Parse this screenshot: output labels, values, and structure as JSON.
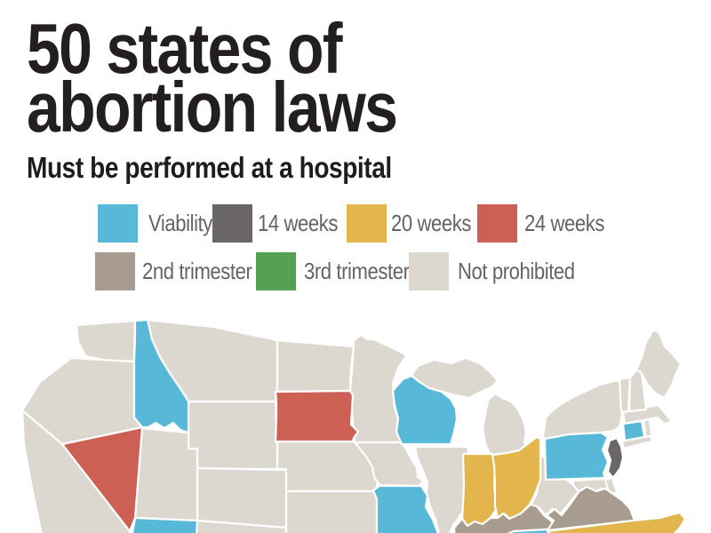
{
  "title": {
    "line1": "50 states of",
    "line2": "abortion laws"
  },
  "subtitle": "Must be performed at a hospital",
  "legend": {
    "items": [
      {
        "id": "viability",
        "label": "Viability",
        "color": "#57b8d8",
        "row": 1
      },
      {
        "id": "14-weeks",
        "label": "14 weeks",
        "color": "#6b6768",
        "row": 1
      },
      {
        "id": "20-weeks",
        "label": "20 weeks",
        "color": "#e2b54d",
        "row": 1
      },
      {
        "id": "24-weeks",
        "label": "24 weeks",
        "color": "#cc6055",
        "row": 1
      },
      {
        "id": "2nd-trimester",
        "label": "2nd trimester",
        "color": "#a89c90",
        "row": 2
      },
      {
        "id": "3rd-trimester",
        "label": "3rd trimester",
        "color": "#56a054",
        "row": 2
      },
      {
        "id": "not-prohibited",
        "label": "Not prohibited",
        "color": "#dcd8d0",
        "row": 2
      }
    ]
  },
  "map": {
    "states": [
      {
        "id": "WA",
        "name": "Washington",
        "status": "not-prohibited"
      },
      {
        "id": "OR",
        "name": "Oregon",
        "status": "not-prohibited"
      },
      {
        "id": "CA",
        "name": "California",
        "status": "not-prohibited"
      },
      {
        "id": "ID",
        "name": "Idaho",
        "status": "viability"
      },
      {
        "id": "NV",
        "name": "Nevada",
        "status": "24-weeks"
      },
      {
        "id": "UT",
        "name": "Utah",
        "status": "not-prohibited"
      },
      {
        "id": "AZ",
        "name": "Arizona",
        "status": "viability"
      },
      {
        "id": "MT",
        "name": "Montana",
        "status": "not-prohibited"
      },
      {
        "id": "WY",
        "name": "Wyoming",
        "status": "not-prohibited"
      },
      {
        "id": "CO",
        "name": "Colorado",
        "status": "not-prohibited"
      },
      {
        "id": "NM",
        "name": "New Mexico",
        "status": "not-prohibited"
      },
      {
        "id": "ND",
        "name": "North Dakota",
        "status": "not-prohibited"
      },
      {
        "id": "SD",
        "name": "South Dakota",
        "status": "24-weeks"
      },
      {
        "id": "NE",
        "name": "Nebraska",
        "status": "not-prohibited"
      },
      {
        "id": "KS",
        "name": "Kansas",
        "status": "not-prohibited"
      },
      {
        "id": "MN",
        "name": "Minnesota",
        "status": "not-prohibited"
      },
      {
        "id": "IA",
        "name": "Iowa",
        "status": "not-prohibited"
      },
      {
        "id": "MO",
        "name": "Missouri",
        "status": "viability"
      },
      {
        "id": "WI",
        "name": "Wisconsin",
        "status": "viability"
      },
      {
        "id": "MI_UP",
        "name": "Michigan (Upper Peninsula)",
        "status": "not-prohibited"
      },
      {
        "id": "MI",
        "name": "Michigan",
        "status": "not-prohibited"
      },
      {
        "id": "IL",
        "name": "Illinois",
        "status": "not-prohibited"
      },
      {
        "id": "IN",
        "name": "Indiana",
        "status": "20-weeks"
      },
      {
        "id": "OH",
        "name": "Ohio",
        "status": "20-weeks"
      },
      {
        "id": "KY",
        "name": "Kentucky",
        "status": "2nd-trimester"
      },
      {
        "id": "TN",
        "name": "Tennessee",
        "status": "viability"
      },
      {
        "id": "WV",
        "name": "West Virginia",
        "status": "not-prohibited"
      },
      {
        "id": "VA",
        "name": "Virginia",
        "status": "2nd-trimester"
      },
      {
        "id": "NC",
        "name": "North Carolina",
        "status": "20-weeks"
      },
      {
        "id": "MD",
        "name": "Maryland",
        "status": "not-prohibited"
      },
      {
        "id": "DE",
        "name": "Delaware",
        "status": "not-prohibited"
      },
      {
        "id": "PA",
        "name": "Pennsylvania",
        "status": "viability"
      },
      {
        "id": "NJ",
        "name": "New Jersey",
        "status": "14-weeks"
      },
      {
        "id": "NY",
        "name": "New York",
        "status": "not-prohibited"
      },
      {
        "id": "LI",
        "name": "Long Island (NY)",
        "status": "not-prohibited"
      },
      {
        "id": "CT",
        "name": "Connecticut",
        "status": "viability"
      },
      {
        "id": "RI",
        "name": "Rhode Island",
        "status": "not-prohibited"
      },
      {
        "id": "MA",
        "name": "Massachusetts",
        "status": "not-prohibited"
      },
      {
        "id": "VT",
        "name": "Vermont",
        "status": "not-prohibited"
      },
      {
        "id": "NH",
        "name": "New Hampshire",
        "status": "not-prohibited"
      },
      {
        "id": "ME",
        "name": "Maine",
        "status": "not-prohibited"
      }
    ]
  },
  "chart_data": {
    "type": "choropleth-map",
    "region": "United States (northern portion visible; map cropped at bottom)",
    "title": "50 states of abortion laws",
    "subtitle": "Must be performed at a hospital",
    "categories": [
      "Viability",
      "14 weeks",
      "20 weeks",
      "24 weeks",
      "2nd trimester",
      "3rd trimester",
      "Not prohibited"
    ],
    "category_colors": [
      "#57b8d8",
      "#6b6768",
      "#e2b54d",
      "#cc6055",
      "#a89c90",
      "#56a054",
      "#dcd8d0"
    ],
    "state_status": {
      "Idaho": "Viability",
      "Arizona": "Viability",
      "Wisconsin": "Viability",
      "Missouri": "Viability",
      "Pennsylvania": "Viability",
      "Connecticut": "Viability",
      "Tennessee": "Viability",
      "Nevada": "24 weeks",
      "South Dakota": "24 weeks",
      "Indiana": "20 weeks",
      "Ohio": "20 weeks",
      "North Carolina": "20 weeks",
      "Kentucky": "2nd trimester",
      "Virginia": "2nd trimester",
      "New Jersey": "14 weeks",
      "Washington": "Not prohibited",
      "Oregon": "Not prohibited",
      "California": "Not prohibited",
      "Utah": "Not prohibited",
      "Montana": "Not prohibited",
      "Wyoming": "Not prohibited",
      "Colorado": "Not prohibited",
      "New Mexico": "Not prohibited",
      "North Dakota": "Not prohibited",
      "Nebraska": "Not prohibited",
      "Kansas": "Not prohibited",
      "Minnesota": "Not prohibited",
      "Iowa": "Not prohibited",
      "Illinois": "Not prohibited",
      "Michigan": "Not prohibited",
      "West Virginia": "Not prohibited",
      "Maryland": "Not prohibited",
      "Delaware": "Not prohibited",
      "New York": "Not prohibited",
      "Rhode Island": "Not prohibited",
      "Massachusetts": "Not prohibited",
      "Vermont": "Not prohibited",
      "New Hampshire": "Not prohibited",
      "Maine": "Not prohibited"
    },
    "legend_position": "top, two rows, below subtitle"
  }
}
